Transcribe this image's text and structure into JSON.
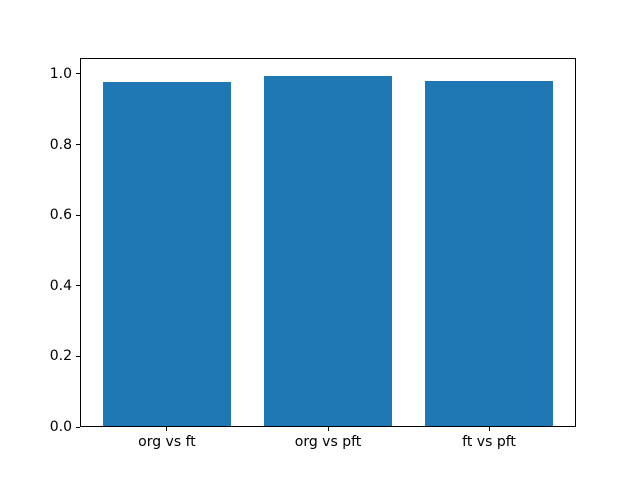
{
  "figure": {
    "background_color": "#ffffff",
    "axes_color": "#000000",
    "text_color": "#000000"
  },
  "chart_data": {
    "type": "bar",
    "title": "",
    "xlabel": "",
    "ylabel": "",
    "categories": [
      "org vs ft",
      "org vs pft",
      "ft vs pft"
    ],
    "values": [
      0.976,
      0.995,
      0.981
    ],
    "bar_color": "#1f77b4",
    "bar_width": 0.8,
    "xlim": [
      -0.54,
      2.54
    ],
    "ylim": [
      0,
      1.045
    ],
    "yticks": [
      0.0,
      0.2,
      0.4,
      0.6,
      0.8,
      1.0
    ],
    "ytick_labels": [
      "0.0",
      "0.2",
      "0.4",
      "0.6",
      "0.8",
      "1.0"
    ],
    "grid": false,
    "legend": null
  }
}
